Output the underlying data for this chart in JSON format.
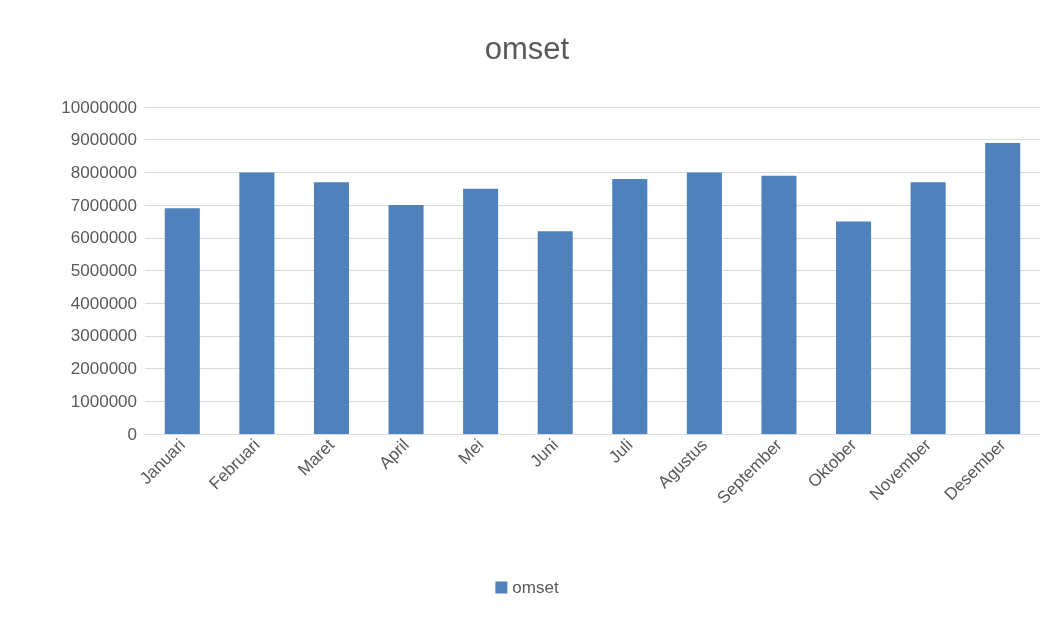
{
  "chart_data": {
    "type": "bar",
    "title": "omset",
    "categories": [
      "Januari",
      "Februari",
      "Maret",
      "April",
      "Mei",
      "Juni",
      "Juli",
      "Agustus",
      "September",
      "Oktober",
      "November",
      "Desember"
    ],
    "series": [
      {
        "name": "omset",
        "color": "#4f81bd",
        "values": [
          6900000,
          8000000,
          7700000,
          7000000,
          7500000,
          6200000,
          7800000,
          8000000,
          7900000,
          6500000,
          7700000,
          8900000
        ]
      }
    ],
    "ylim": [
      0,
      10000000
    ],
    "yticks": [
      0,
      1000000,
      2000000,
      3000000,
      4000000,
      5000000,
      6000000,
      7000000,
      8000000,
      9000000,
      10000000
    ],
    "grid": "y",
    "legend": "bottom"
  }
}
